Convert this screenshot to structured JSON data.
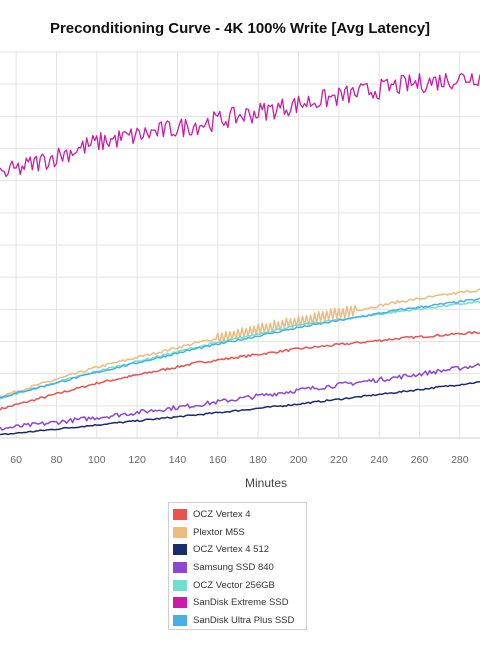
{
  "chart_data": {
    "type": "line",
    "title": "Preconditioning Curve - 4K 100% Write [Avg Latency]",
    "xlabel": "Minutes",
    "ylabel": "",
    "x_ticks": [
      60,
      80,
      100,
      120,
      140,
      160,
      180,
      200,
      220,
      240,
      260,
      280
    ],
    "xlim": [
      52,
      290
    ],
    "ylim": [
      0,
      100
    ],
    "grid": true,
    "legend_position": "bottom",
    "series": [
      {
        "name": "OCZ Vertex 4",
        "color": "#e8524f",
        "x": [
          52,
          100,
          150,
          200,
          250,
          290
        ],
        "y": [
          7.5,
          14.2,
          19.5,
          23.1,
          25.8,
          27.4
        ],
        "noise": 0.3
      },
      {
        "name": "Plextor M5S",
        "color": "#edbb80",
        "x": [
          52,
          100,
          150,
          200,
          250,
          290
        ],
        "y": [
          10.8,
          18.3,
          24.7,
          30.2,
          35.3,
          38.4
        ],
        "noise": 0.35,
        "spike_range": [
          160,
          228
        ],
        "spike_amp": 1.3
      },
      {
        "name": "OCZ Vertex 4 512",
        "color": "#1c2a6e",
        "x": [
          52,
          100,
          150,
          200,
          250,
          290
        ],
        "y": [
          0.8,
          3.4,
          6.0,
          8.8,
          11.9,
          14.5
        ],
        "noise": 0.2
      },
      {
        "name": "Samsung SSD 840",
        "color": "#8c46d6",
        "x": [
          52,
          100,
          150,
          200,
          250,
          290
        ],
        "y": [
          2.4,
          5.3,
          8.6,
          12.4,
          15.8,
          18.9
        ],
        "noise": 0.6
      },
      {
        "name": "OCZ Vector 256GB",
        "color": "#6fe0d0",
        "x": [
          52,
          100,
          150,
          200,
          250,
          290
        ],
        "y": [
          10.3,
          17.3,
          23.6,
          29.2,
          32.8,
          35.3
        ],
        "noise": 0.25
      },
      {
        "name": "SanDisk Extreme SSD",
        "color": "#c81da8",
        "x": [
          52,
          60,
          100,
          150,
          200,
          250,
          290
        ],
        "y": [
          68.2,
          69.5,
          76.5,
          81.2,
          86.5,
          91.3,
          93.8
        ],
        "noise": 2.6
      },
      {
        "name": "SanDisk Ultra Plus SSD",
        "color": "#4aaee6",
        "x": [
          52,
          100,
          150,
          200,
          250,
          290
        ],
        "y": [
          10.5,
          17.0,
          23.2,
          28.6,
          33.2,
          36.0
        ],
        "noise": 0.25
      }
    ]
  }
}
